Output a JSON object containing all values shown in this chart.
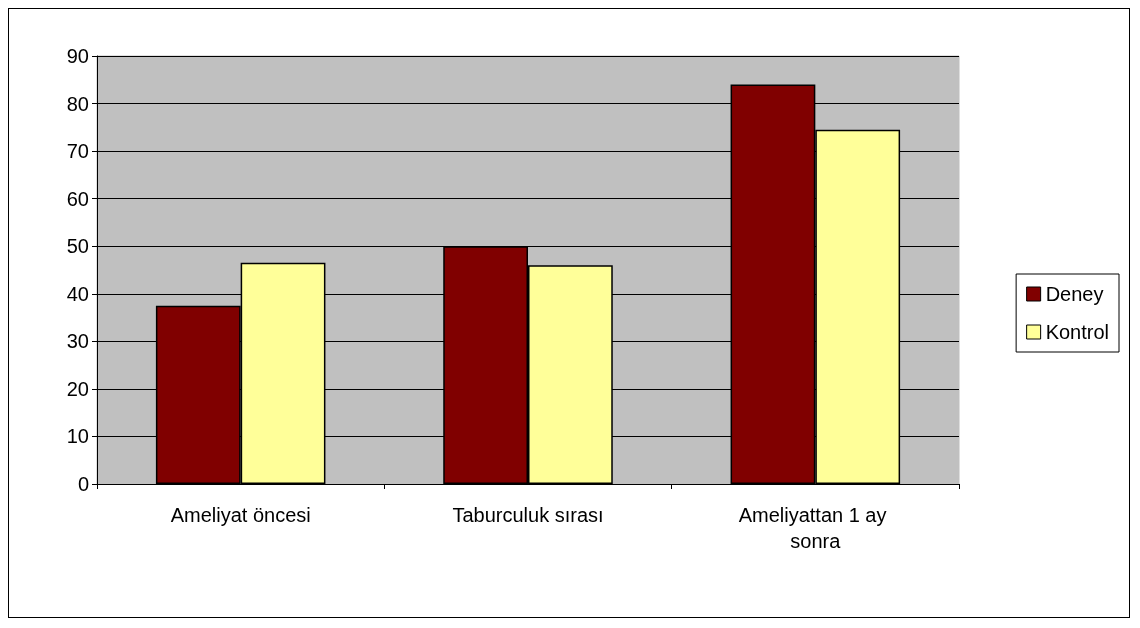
{
  "chart_data": {
    "type": "bar",
    "categories": [
      "Ameliyat öncesi",
      "Taburculuk sırası",
      "Ameliyattan 1 ay sonra"
    ],
    "series": [
      {
        "name": "Deney",
        "color": "#800000",
        "values": [
          37.5,
          50,
          84
        ]
      },
      {
        "name": "Kontrol",
        "color": "#ffff99",
        "values": [
          46.5,
          46,
          74.5
        ]
      }
    ],
    "ylim": [
      0,
      90
    ],
    "yticks": [
      0,
      10,
      20,
      30,
      40,
      50,
      60,
      70,
      80,
      90
    ],
    "grid": "y",
    "legend": "right"
  }
}
